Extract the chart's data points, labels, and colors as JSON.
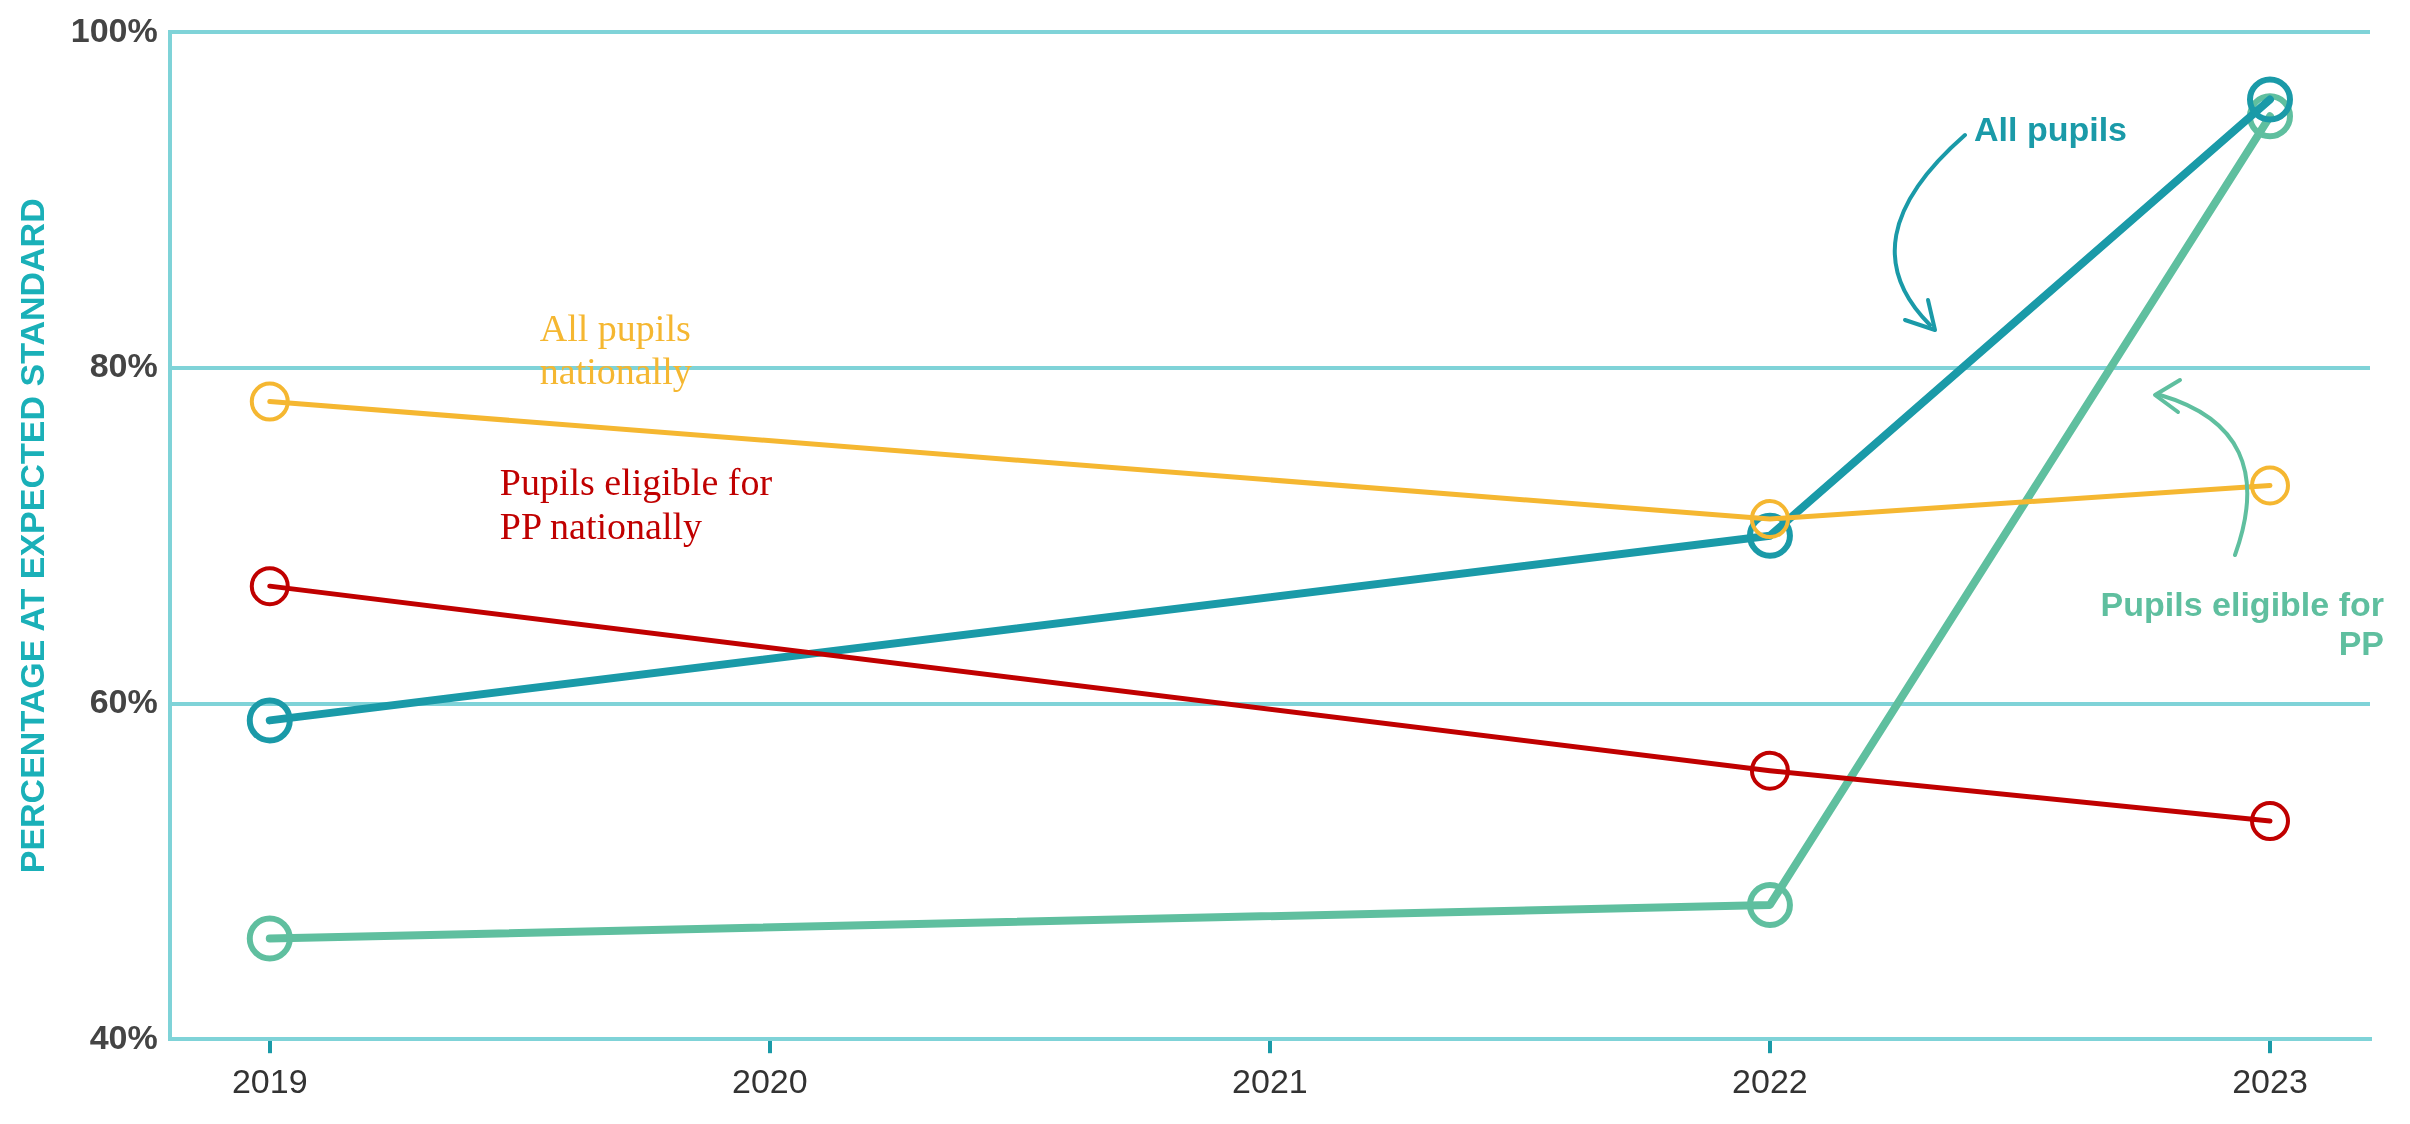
{
  "chart_data": {
    "type": "line",
    "ylabel": "PERCENTAGE AT EXPECTED STANDARD",
    "x": [
      2019,
      2022,
      2023
    ],
    "xlim": [
      2018.8,
      2023.2
    ],
    "xticks": [
      2019,
      2020,
      2021,
      2022,
      2023
    ],
    "ylim": [
      40,
      100
    ],
    "yticks": [
      {
        "value": 40,
        "label": "40%"
      },
      {
        "value": 60,
        "label": "60%"
      },
      {
        "value": 80,
        "label": "80%"
      },
      {
        "value": 100,
        "label": "100%"
      }
    ],
    "grid": "y",
    "legend": false,
    "marker": "circle",
    "line_style": "solid",
    "series": [
      {
        "name": "All pupils nationally",
        "color": "#f5b731",
        "values": [
          78,
          71,
          73
        ]
      },
      {
        "name": "Pupils eligible for PP nationally",
        "color": "#c00000",
        "values": [
          67,
          56,
          53
        ]
      },
      {
        "name": "All pupils",
        "color": "#1a9aa8",
        "values": [
          59,
          70,
          96
        ]
      },
      {
        "name": "Pupils eligible for PP",
        "color": "#5fbf9f",
        "values": [
          46,
          48,
          95
        ]
      }
    ]
  }
}
